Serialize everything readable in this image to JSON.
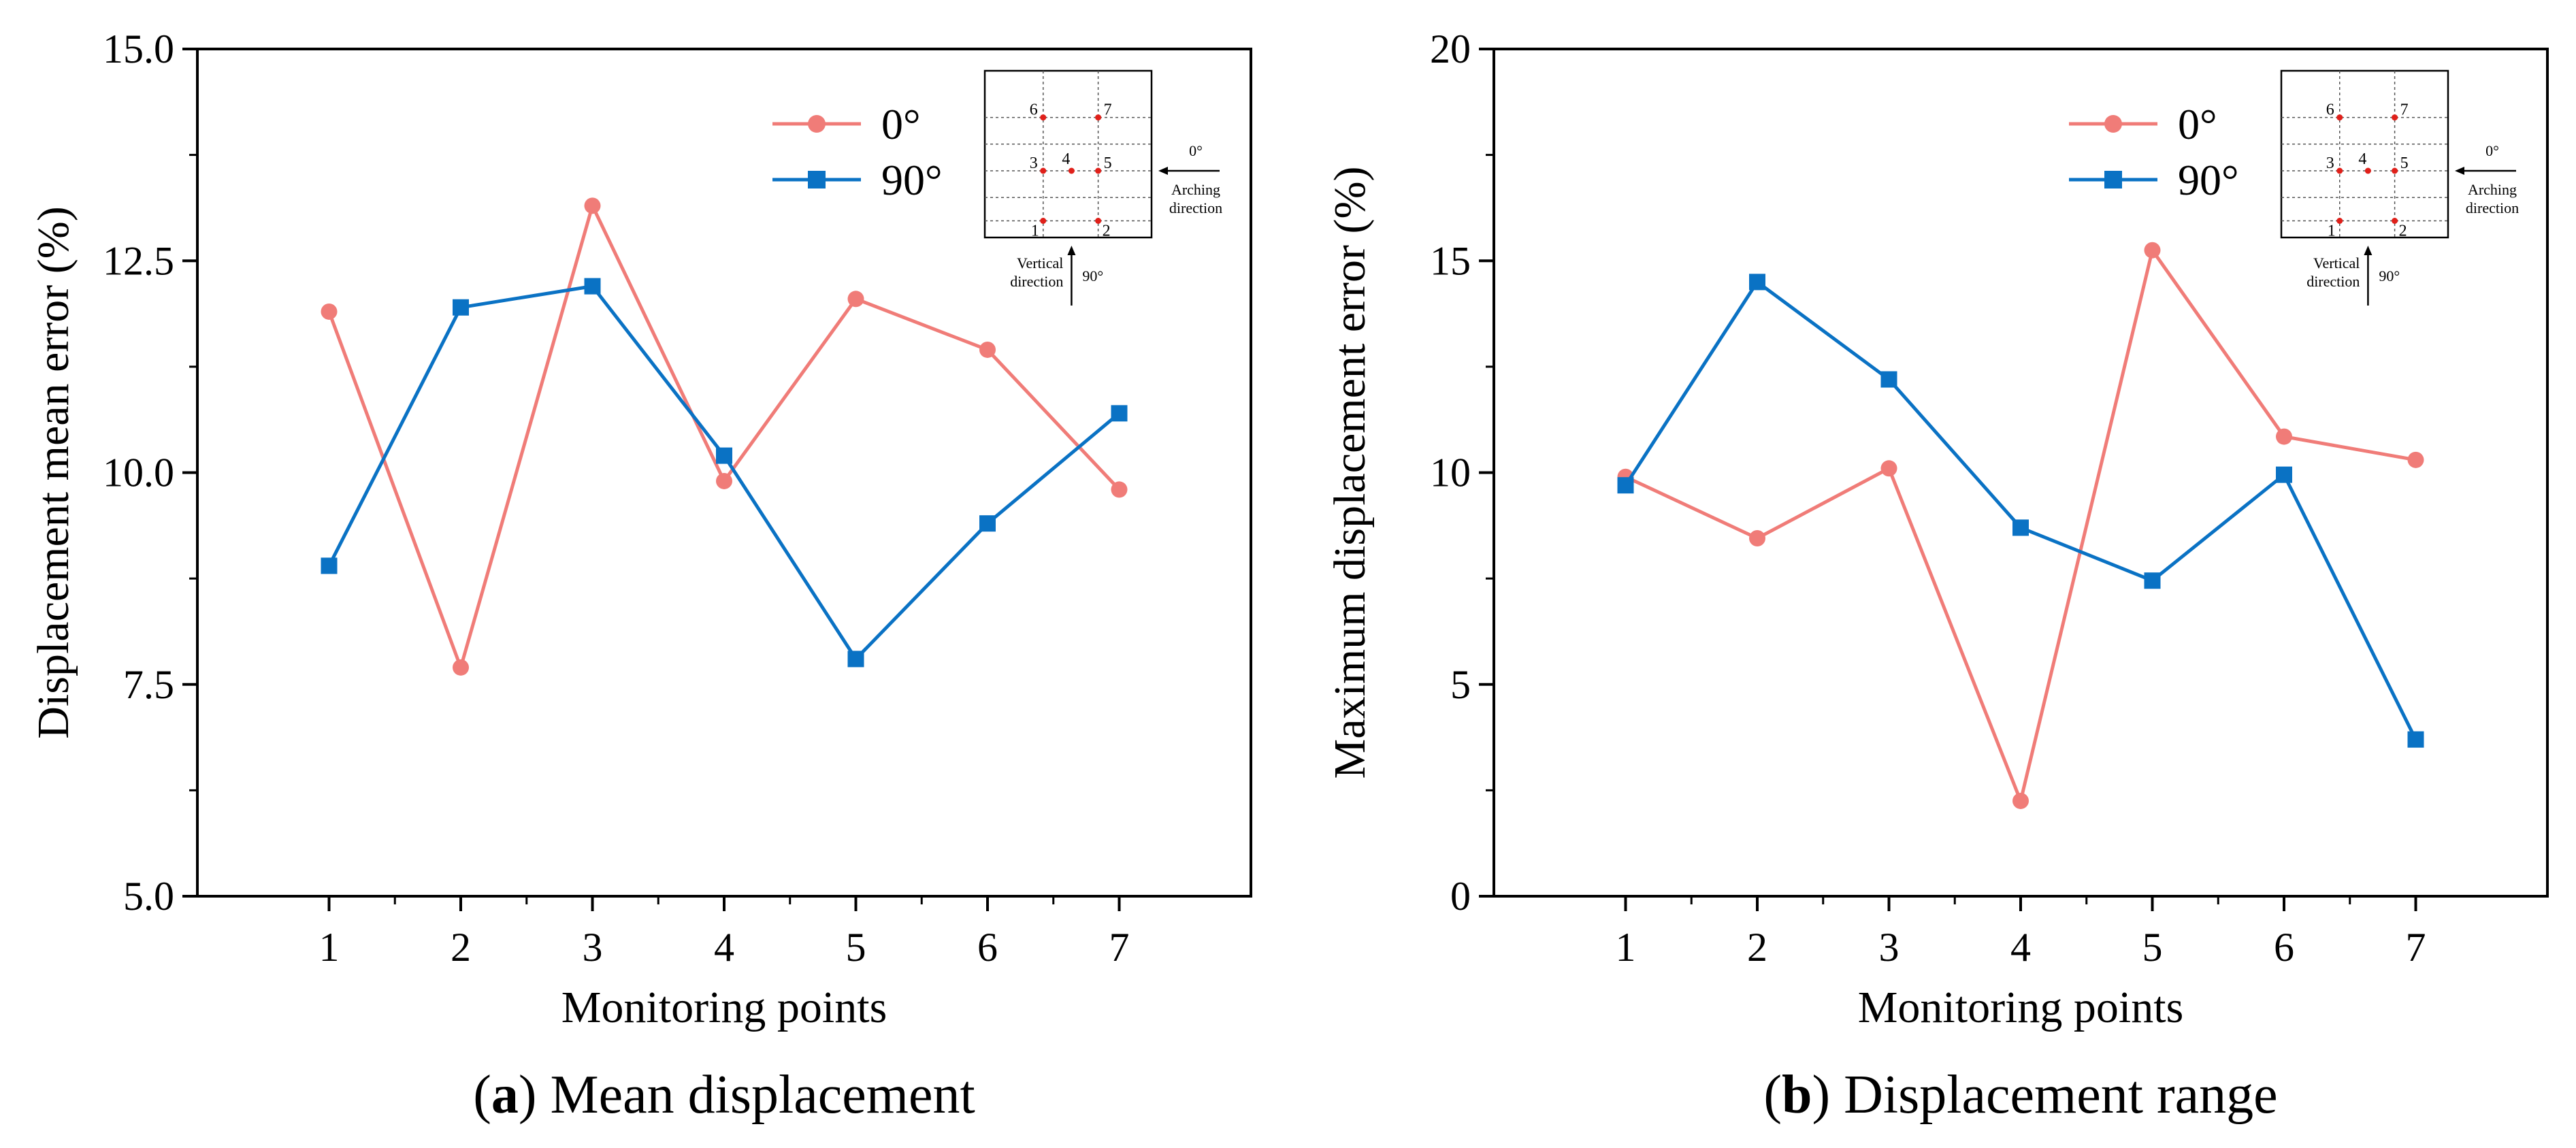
{
  "colors": {
    "series_0": "#f07c78",
    "series_90": "#0a72c4",
    "inset_point": "#e0201a"
  },
  "chart_data": [
    {
      "type": "line",
      "title": "",
      "caption_bold": "a",
      "caption_text": " Mean displacement",
      "xlabel": "Monitoring points",
      "ylabel": "Displacement mean error (%)",
      "categories": [
        "1",
        "2",
        "3",
        "4",
        "5",
        "6",
        "7"
      ],
      "ylim": [
        5.0,
        15.0
      ],
      "yticks": [
        5.0,
        7.5,
        10.0,
        12.5,
        15.0
      ],
      "ytick_labels": [
        "5.0",
        "7.5",
        "10.0",
        "12.5",
        "15.0"
      ],
      "series": [
        {
          "name": "0°",
          "marker": "circle",
          "values": [
            11.9,
            7.7,
            13.15,
            9.9,
            12.05,
            11.45,
            9.8
          ]
        },
        {
          "name": "90°",
          "marker": "square",
          "values": [
            8.9,
            11.95,
            12.2,
            10.2,
            7.8,
            9.4,
            10.7
          ]
        }
      ],
      "legend_position": "top-right"
    },
    {
      "type": "line",
      "title": "",
      "caption_bold": "b",
      "caption_text": " Displacement range",
      "xlabel": "Monitoring points",
      "ylabel": "Maximum displacement error (%)",
      "categories": [
        "1",
        "2",
        "3",
        "4",
        "5",
        "6",
        "7"
      ],
      "ylim": [
        0,
        20
      ],
      "yticks": [
        0,
        5,
        10,
        15,
        20
      ],
      "ytick_labels": [
        "0",
        "5",
        "10",
        "15",
        "20"
      ],
      "series": [
        {
          "name": "0°",
          "marker": "circle",
          "values": [
            9.9,
            8.45,
            10.1,
            2.25,
            15.25,
            10.85,
            10.3
          ]
        },
        {
          "name": "90°",
          "marker": "square",
          "values": [
            9.7,
            14.5,
            12.2,
            8.7,
            7.45,
            9.95,
            3.7
          ]
        }
      ],
      "legend_position": "top-right"
    }
  ],
  "inset": {
    "point_labels": [
      "1",
      "2",
      "3",
      "4",
      "5",
      "6",
      "7"
    ],
    "angle_0": "0°",
    "arching_line1": "Arching",
    "arching_line2": "direction",
    "vertical_line1": "Vertical",
    "vertical_line2": "direction",
    "angle_90": "90°"
  }
}
